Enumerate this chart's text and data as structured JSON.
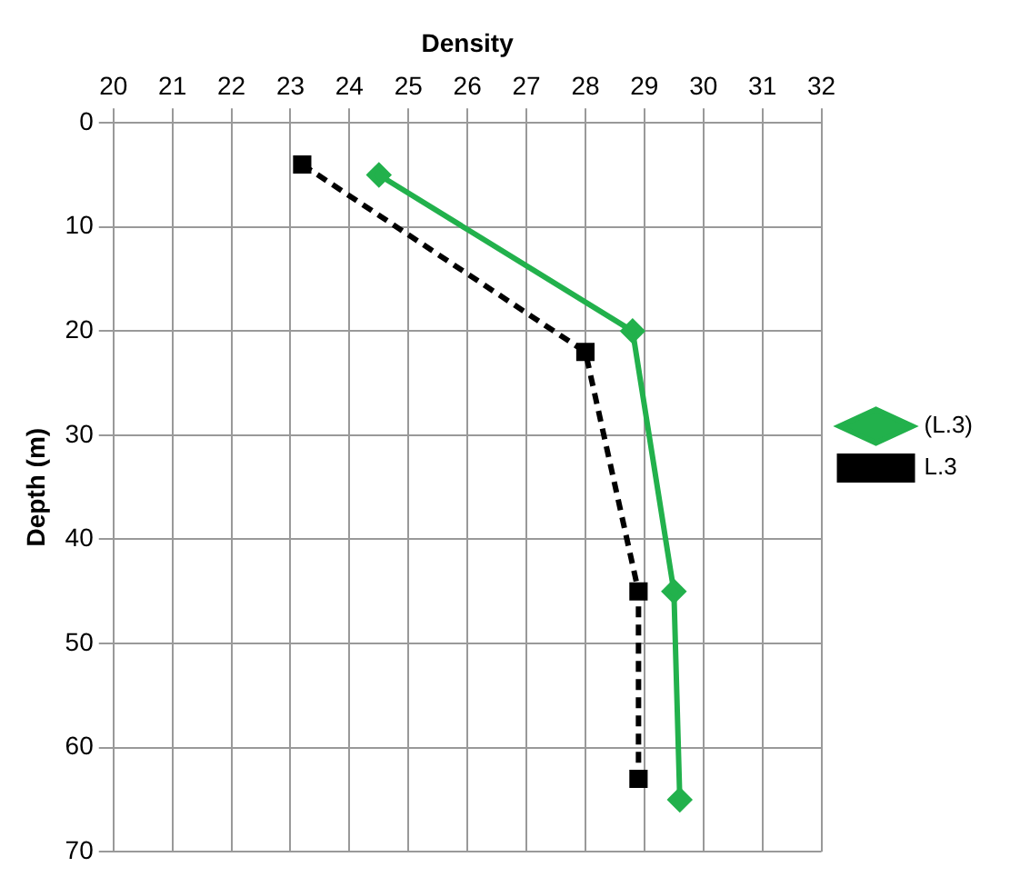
{
  "chart_data": {
    "type": "line",
    "xlabel": "Density",
    "ylabel": "Depth (m)",
    "xlim": [
      20,
      32
    ],
    "xticks": [
      20,
      21,
      22,
      23,
      24,
      25,
      26,
      27,
      28,
      29,
      30,
      31,
      32
    ],
    "ylim": [
      70,
      0
    ],
    "yticks": [
      0,
      10,
      20,
      30,
      40,
      50,
      60,
      70
    ],
    "grid": true,
    "legend": "right",
    "series": [
      {
        "name": "(L.3)",
        "color": "#22b14c",
        "marker": "diamond",
        "line_style": "solid",
        "x": [
          24.5,
          28.8,
          29.5,
          29.6
        ],
        "values": [
          5,
          20,
          45,
          65
        ]
      },
      {
        "name": "L.3",
        "color": "#000000",
        "marker": "square",
        "line_style": "dashed",
        "x": [
          23.2,
          28.0,
          28.9,
          28.9
        ],
        "values": [
          4,
          22,
          45,
          63
        ]
      }
    ]
  }
}
